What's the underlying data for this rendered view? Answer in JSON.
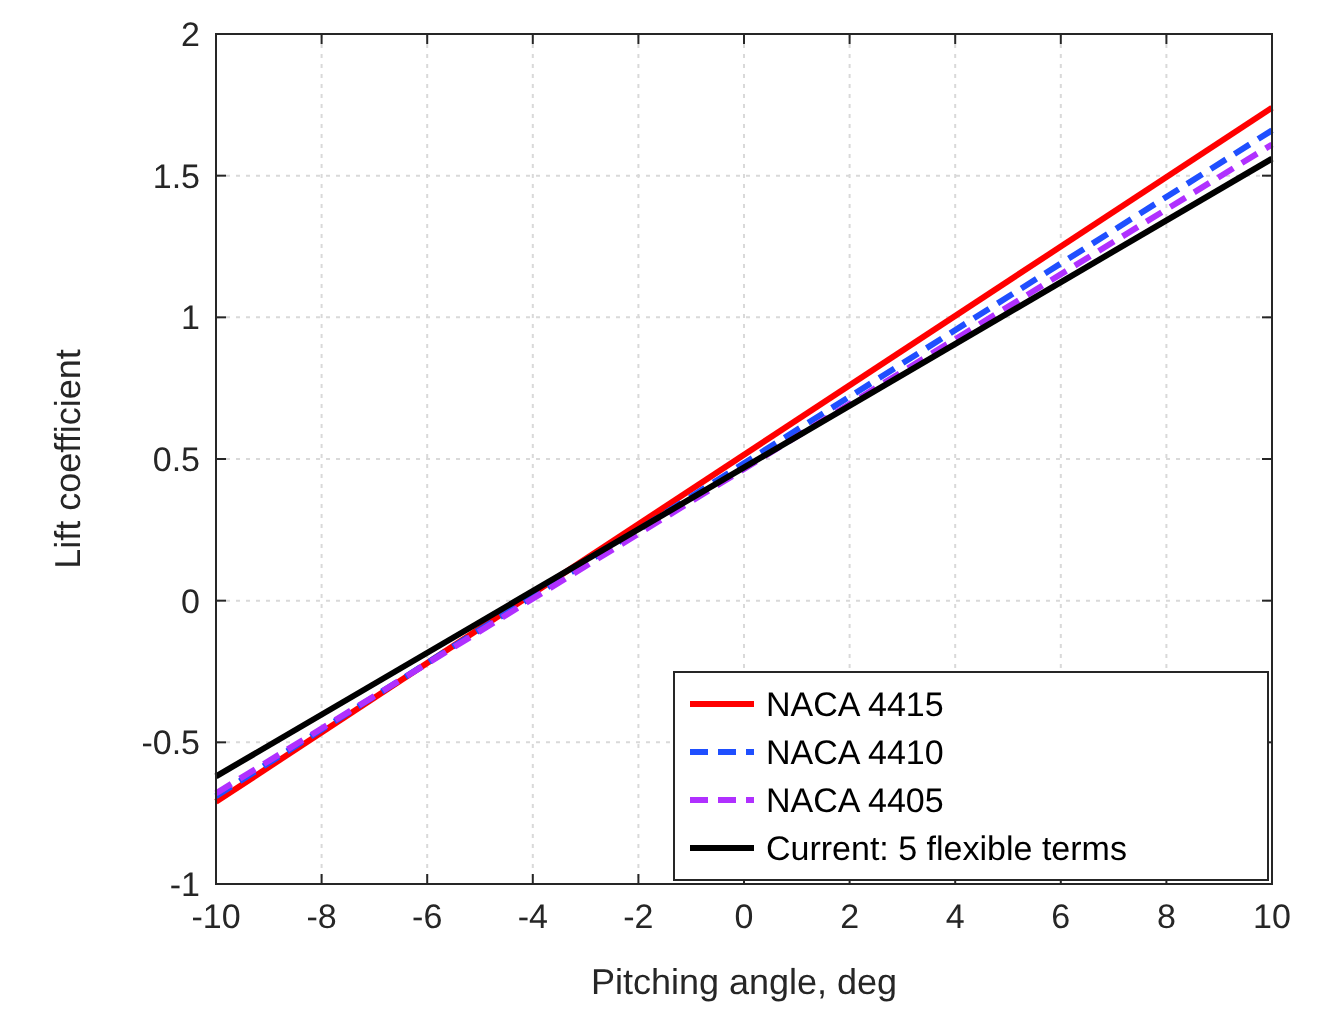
{
  "chart_data": {
    "type": "line",
    "xlabel": "Pitching angle, deg",
    "ylabel": "Lift coefficient",
    "x": [
      -10,
      10
    ],
    "series": [
      {
        "name": "NACA 4415",
        "color": "#ff0000",
        "values": [
          -0.71,
          1.74
        ],
        "line_style": "solid"
      },
      {
        "name": "NACA 4410",
        "color": "#1f4fff",
        "values": [
          -0.69,
          1.66
        ],
        "line_style": "dashed"
      },
      {
        "name": "NACA 4405",
        "color": "#b030ff",
        "values": [
          -0.68,
          1.61
        ],
        "line_style": "dashed"
      },
      {
        "name": "Current: 5 flexible terms",
        "color": "#000000",
        "values": [
          -0.62,
          1.56
        ],
        "line_style": "solid"
      }
    ],
    "xlim": [
      -10,
      10
    ],
    "xticks": [
      -10,
      -8,
      -6,
      -4,
      -2,
      0,
      2,
      4,
      6,
      8,
      10
    ],
    "ylim": [
      -1,
      2
    ],
    "yticks": [
      -1,
      -0.5,
      0,
      0.5,
      1,
      1.5,
      2
    ],
    "grid": true,
    "legend": "bottom right",
    "marker": "none"
  }
}
